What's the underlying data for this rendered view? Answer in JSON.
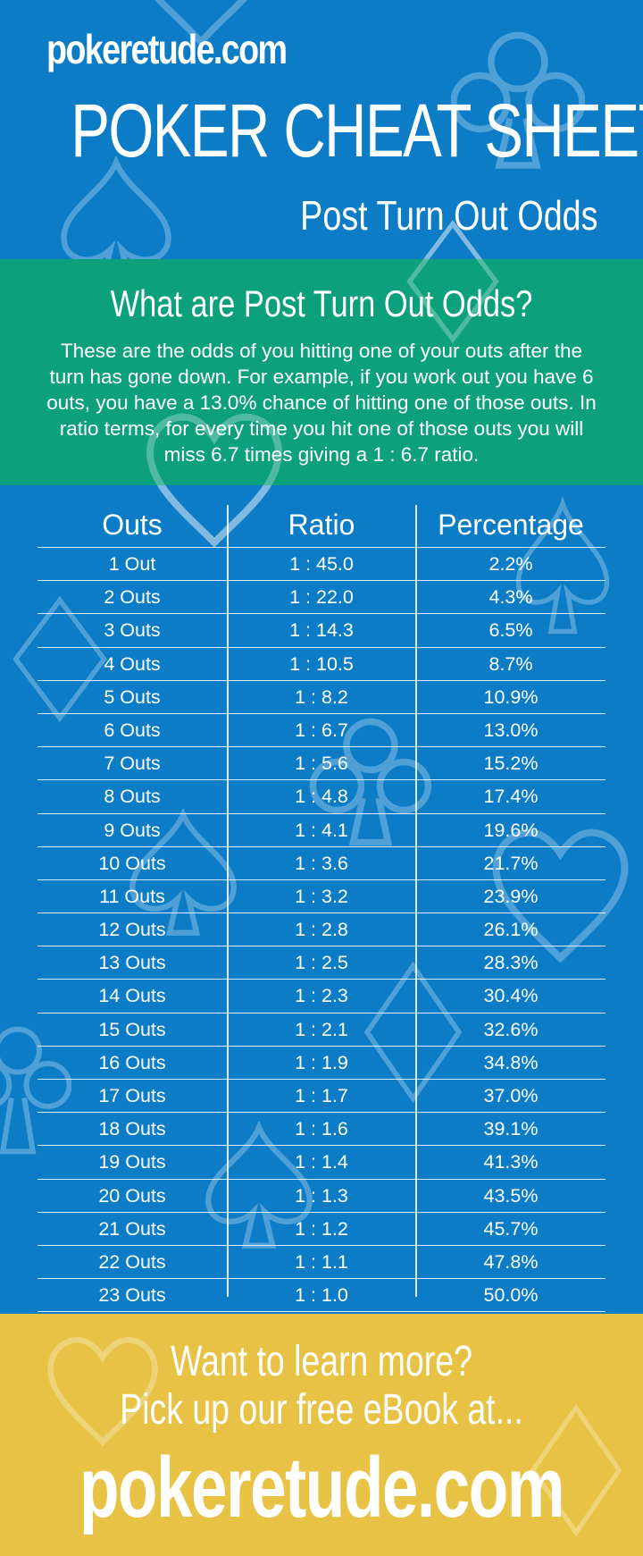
{
  "colors": {
    "background_blue": "#0c7cc7",
    "intro_green": "#0ca07c",
    "footer_yellow": "#e8c244",
    "text": "#ffffff"
  },
  "header": {
    "site": "pokeretude.com",
    "title": "POKER CHEAT SHEET",
    "subtitle": "Post Turn Out Odds"
  },
  "intro": {
    "heading": "What are Post Turn Out Odds?",
    "text": "These are the odds of you hitting one of your outs after the turn has gone down. For example, if you work out you have 6 outs, you have a 13.0% chance of hitting one of those outs. In ratio terms, for every time you hit one of those outs you will miss 6.7 times giving a 1 : 6.7 ratio."
  },
  "table": {
    "headers": [
      "Outs",
      "Ratio",
      "Percentage"
    ],
    "rows": [
      {
        "outs": "1 Out",
        "ratio": "1 : 45.0",
        "pct": "2.2%"
      },
      {
        "outs": "2 Outs",
        "ratio": "1 : 22.0",
        "pct": "4.3%"
      },
      {
        "outs": "3 Outs",
        "ratio": "1 : 14.3",
        "pct": "6.5%"
      },
      {
        "outs": "4 Outs",
        "ratio": "1 : 10.5",
        "pct": "8.7%"
      },
      {
        "outs": "5 Outs",
        "ratio": "1 : 8.2",
        "pct": "10.9%"
      },
      {
        "outs": "6 Outs",
        "ratio": "1 : 6.7",
        "pct": "13.0%"
      },
      {
        "outs": "7 Outs",
        "ratio": "1 : 5.6",
        "pct": "15.2%"
      },
      {
        "outs": "8 Outs",
        "ratio": "1 : 4.8",
        "pct": "17.4%"
      },
      {
        "outs": "9 Outs",
        "ratio": "1 : 4.1",
        "pct": "19.6%"
      },
      {
        "outs": "10 Outs",
        "ratio": "1 : 3.6",
        "pct": "21.7%"
      },
      {
        "outs": "11 Outs",
        "ratio": "1 : 3.2",
        "pct": "23.9%"
      },
      {
        "outs": "12 Outs",
        "ratio": "1 : 2.8",
        "pct": "26.1%"
      },
      {
        "outs": "13 Outs",
        "ratio": "1 : 2.5",
        "pct": "28.3%"
      },
      {
        "outs": "14 Outs",
        "ratio": "1 : 2.3",
        "pct": "30.4%"
      },
      {
        "outs": "15 Outs",
        "ratio": "1 : 2.1",
        "pct": "32.6%"
      },
      {
        "outs": "16 Outs",
        "ratio": "1 : 1.9",
        "pct": "34.8%"
      },
      {
        "outs": "17 Outs",
        "ratio": "1 : 1.7",
        "pct": "37.0%"
      },
      {
        "outs": "18 Outs",
        "ratio": "1 : 1.6",
        "pct": "39.1%"
      },
      {
        "outs": "19 Outs",
        "ratio": "1 : 1.4",
        "pct": "41.3%"
      },
      {
        "outs": "20 Outs",
        "ratio": "1 : 1.3",
        "pct": "43.5%"
      },
      {
        "outs": "21 Outs",
        "ratio": "1 : 1.2",
        "pct": "45.7%"
      },
      {
        "outs": "22 Outs",
        "ratio": "1 : 1.1",
        "pct": "47.8%"
      },
      {
        "outs": "23 Outs",
        "ratio": "1 : 1.0",
        "pct": "50.0%"
      }
    ]
  },
  "footer": {
    "line1": "Want to learn more?",
    "line2": "Pick up our free eBook at...",
    "site": "pokeretude.com"
  },
  "decorations": [
    "spade-icon",
    "club-icon",
    "diamond-icon",
    "heart-icon"
  ]
}
